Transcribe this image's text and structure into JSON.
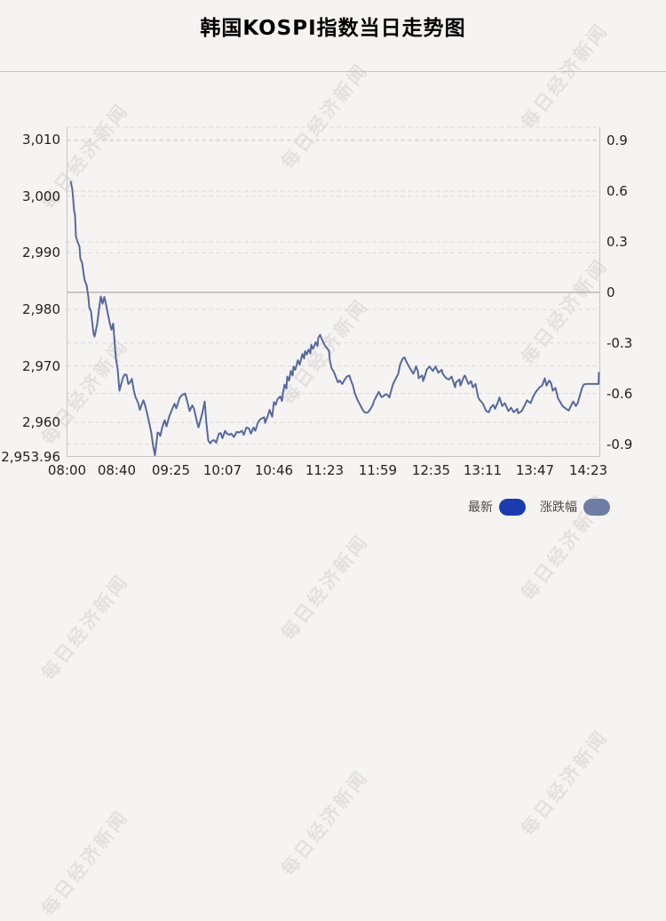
{
  "title": "韩国KOSPI指数当日走势图",
  "watermark_text": "每日经济新闻",
  "legend": {
    "latest": {
      "label": "最新",
      "color": "#1b3cae"
    },
    "change": {
      "label": "涨跌幅",
      "color": "#6e7da4"
    }
  },
  "colors": {
    "background": "#f6f4f3",
    "line": "#56699e",
    "grid": "#d9d6d5",
    "zero_line": "#9b9897",
    "axis": "#c7c4c3",
    "label_text": "#222222",
    "legend_text": "#4a4a4a",
    "title_text": "#000000",
    "divider": "#c9c6c5",
    "watermark": "rgba(155,145,140,0.20)"
  },
  "chart_data": {
    "type": "line",
    "title": "韩国KOSPI指数当日走势图",
    "grid": true,
    "legend_position": "bottom-right",
    "x_axis": {
      "ticks": [
        {
          "label": "08:00",
          "f": 0
        },
        {
          "label": "08:40",
          "f": 0.0933
        },
        {
          "label": "09:25",
          "f": 0.195
        },
        {
          "label": "10:07",
          "f": 0.2917
        },
        {
          "label": "10:46",
          "f": 0.3883
        },
        {
          "label": "11:23",
          "f": 0.4833
        },
        {
          "label": "11:59",
          "f": 0.5833
        },
        {
          "label": "12:35",
          "f": 0.6833
        },
        {
          "label": "13:11",
          "f": 0.78
        },
        {
          "label": "13:47",
          "f": 0.8783
        },
        {
          "label": "14:23",
          "f": 0.9783
        }
      ]
    },
    "y_left": {
      "min": 2953.96,
      "max": 3012.25,
      "labels": [
        {
          "text": "3,010",
          "value": 3010
        },
        {
          "text": "3,000",
          "value": 3000
        },
        {
          "text": "2,990",
          "value": 2990
        },
        {
          "text": "2,980",
          "value": 2980
        },
        {
          "text": "2,970",
          "value": 2970
        },
        {
          "text": "2,960",
          "value": 2960
        }
      ],
      "min_label": {
        "text": "2,953.96",
        "value": 2953.96
      }
    },
    "y_right": {
      "unit": "%",
      "labels": [
        {
          "text": "0.9",
          "pct": 0.9
        },
        {
          "text": "0.6",
          "pct": 0.6
        },
        {
          "text": "0.3",
          "pct": 0.3
        },
        {
          "text": "0",
          "pct": 0
        },
        {
          "text": "-0.3",
          "pct": -0.3
        },
        {
          "text": "-0.6",
          "pct": -0.6
        },
        {
          "text": "-0.9",
          "pct": -0.9
        }
      ]
    },
    "zero_line_value": 2983.0,
    "day_low": 2953.96,
    "latest_value": 2968.9,
    "series": [
      {
        "name": "最新",
        "points": [
          [
            0.0067,
            3002.7
          ],
          [
            0.0083,
            3002.0
          ],
          [
            0.01,
            3001.2
          ],
          [
            0.0117,
            2999.3
          ],
          [
            0.0133,
            2997.4
          ],
          [
            0.015,
            2996.7
          ],
          [
            0.0167,
            2992.9
          ],
          [
            0.02,
            2991.9
          ],
          [
            0.0233,
            2991.1
          ],
          [
            0.025,
            2989.0
          ],
          [
            0.0283,
            2988.2
          ],
          [
            0.0317,
            2985.9
          ],
          [
            0.0333,
            2985.1
          ],
          [
            0.0367,
            2984.3
          ],
          [
            0.04,
            2982.2
          ],
          [
            0.0417,
            2980.4
          ],
          [
            0.045,
            2979.6
          ],
          [
            0.0483,
            2976.8
          ],
          [
            0.05,
            2975.6
          ],
          [
            0.0517,
            2975.2
          ],
          [
            0.0533,
            2975.9
          ],
          [
            0.0567,
            2977.5
          ],
          [
            0.06,
            2980.0
          ],
          [
            0.0633,
            2982.3
          ],
          [
            0.0667,
            2981.0
          ],
          [
            0.07,
            2982.2
          ],
          [
            0.0733,
            2980.8
          ],
          [
            0.0767,
            2979.2
          ],
          [
            0.08,
            2977.6
          ],
          [
            0.0833,
            2976.4
          ],
          [
            0.0867,
            2977.5
          ],
          [
            0.09,
            2973.3
          ],
          [
            0.0917,
            2971.3
          ],
          [
            0.095,
            2969.4
          ],
          [
            0.0983,
            2965.6
          ],
          [
            0.1017,
            2966.8
          ],
          [
            0.105,
            2967.9
          ],
          [
            0.1083,
            2968.5
          ],
          [
            0.1117,
            2968.4
          ],
          [
            0.115,
            2966.8
          ],
          [
            0.1183,
            2967.1
          ],
          [
            0.1217,
            2967.7
          ],
          [
            0.125,
            2965.8
          ],
          [
            0.1283,
            2964.5
          ],
          [
            0.1333,
            2963.5
          ],
          [
            0.1367,
            2962.2
          ],
          [
            0.14,
            2963.1
          ],
          [
            0.1433,
            2963.9
          ],
          [
            0.1467,
            2963.0
          ],
          [
            0.15,
            2961.7
          ],
          [
            0.155,
            2959.6
          ],
          [
            0.1583,
            2958.0
          ],
          [
            0.1617,
            2955.8
          ],
          [
            0.165,
            2954.2
          ],
          [
            0.1667,
            2955.5
          ],
          [
            0.17,
            2958.2
          ],
          [
            0.1733,
            2958.0
          ],
          [
            0.175,
            2957.6
          ],
          [
            0.1783,
            2959.0
          ],
          [
            0.1833,
            2960.4
          ],
          [
            0.1867,
            2959.3
          ],
          [
            0.1917,
            2961.0
          ],
          [
            0.1967,
            2962.2
          ],
          [
            0.2017,
            2963.3
          ],
          [
            0.205,
            2962.5
          ],
          [
            0.2117,
            2964.4
          ],
          [
            0.2167,
            2964.9
          ],
          [
            0.2217,
            2965.1
          ],
          [
            0.2267,
            2963.3
          ],
          [
            0.23,
            2962.0
          ],
          [
            0.235,
            2963.0
          ],
          [
            0.2383,
            2962.4
          ],
          [
            0.2433,
            2960.3
          ],
          [
            0.2467,
            2959.1
          ],
          [
            0.2533,
            2961.4
          ],
          [
            0.2583,
            2963.7
          ],
          [
            0.2617,
            2959.8
          ],
          [
            0.265,
            2956.8
          ],
          [
            0.2683,
            2956.3
          ],
          [
            0.2733,
            2956.8
          ],
          [
            0.2767,
            2956.8
          ],
          [
            0.28,
            2956.4
          ],
          [
            0.285,
            2958.0
          ],
          [
            0.2883,
            2958.1
          ],
          [
            0.2917,
            2957.2
          ],
          [
            0.2967,
            2958.5
          ],
          [
            0.3,
            2958.0
          ],
          [
            0.305,
            2957.8
          ],
          [
            0.3083,
            2958.0
          ],
          [
            0.3133,
            2957.4
          ],
          [
            0.3183,
            2958.3
          ],
          [
            0.3233,
            2958.2
          ],
          [
            0.3283,
            2958.5
          ],
          [
            0.3317,
            2957.8
          ],
          [
            0.3367,
            2959.1
          ],
          [
            0.3417,
            2958.9
          ],
          [
            0.345,
            2958.0
          ],
          [
            0.35,
            2959.1
          ],
          [
            0.3533,
            2958.5
          ],
          [
            0.3583,
            2960.0
          ],
          [
            0.3633,
            2960.6
          ],
          [
            0.37,
            2960.9
          ],
          [
            0.3717,
            2959.9
          ],
          [
            0.3767,
            2961.1
          ],
          [
            0.38,
            2962.2
          ],
          [
            0.385,
            2961.0
          ],
          [
            0.3883,
            2963.6
          ],
          [
            0.3917,
            2963.1
          ],
          [
            0.395,
            2964.1
          ],
          [
            0.4,
            2964.6
          ],
          [
            0.4033,
            2963.8
          ],
          [
            0.405,
            2965.1
          ],
          [
            0.4083,
            2966.7
          ],
          [
            0.4117,
            2966.0
          ],
          [
            0.4133,
            2968.1
          ],
          [
            0.4167,
            2967.4
          ],
          [
            0.42,
            2969.1
          ],
          [
            0.4233,
            2968.3
          ],
          [
            0.425,
            2969.9
          ],
          [
            0.4283,
            2969.3
          ],
          [
            0.4333,
            2971.0
          ],
          [
            0.4367,
            2970.2
          ],
          [
            0.4417,
            2972.1
          ],
          [
            0.445,
            2971.3
          ],
          [
            0.4467,
            2972.6
          ],
          [
            0.45,
            2972.0
          ],
          [
            0.4533,
            2972.9
          ],
          [
            0.4567,
            2972.2
          ],
          [
            0.4583,
            2973.7
          ],
          [
            0.4617,
            2973.0
          ],
          [
            0.4667,
            2974.2
          ],
          [
            0.47,
            2973.5
          ],
          [
            0.4717,
            2975.0
          ],
          [
            0.475,
            2975.5
          ],
          [
            0.4783,
            2974.7
          ],
          [
            0.4833,
            2973.7
          ],
          [
            0.4867,
            2973.3
          ],
          [
            0.4917,
            2972.6
          ],
          [
            0.4933,
            2970.9
          ],
          [
            0.4967,
            2969.5
          ],
          [
            0.5,
            2969.1
          ],
          [
            0.5033,
            2968.3
          ],
          [
            0.5083,
            2967.1
          ],
          [
            0.5117,
            2967.4
          ],
          [
            0.5167,
            2966.8
          ],
          [
            0.52,
            2967.4
          ],
          [
            0.525,
            2968.1
          ],
          [
            0.53,
            2968.3
          ],
          [
            0.5333,
            2967.3
          ],
          [
            0.5367,
            2966.5
          ],
          [
            0.54,
            2965.2
          ],
          [
            0.545,
            2964.0
          ],
          [
            0.55,
            2963.1
          ],
          [
            0.555,
            2962.2
          ],
          [
            0.5583,
            2961.8
          ],
          [
            0.5617,
            2961.7
          ],
          [
            0.565,
            2961.8
          ],
          [
            0.5683,
            2962.2
          ],
          [
            0.5733,
            2963.0
          ],
          [
            0.5767,
            2963.9
          ],
          [
            0.5817,
            2964.8
          ],
          [
            0.585,
            2965.4
          ],
          [
            0.59,
            2964.5
          ],
          [
            0.5933,
            2964.6
          ],
          [
            0.5983,
            2965.0
          ],
          [
            0.6017,
            2964.8
          ],
          [
            0.605,
            2964.4
          ],
          [
            0.61,
            2966.2
          ],
          [
            0.6133,
            2967.1
          ],
          [
            0.6183,
            2968.0
          ],
          [
            0.6217,
            2968.6
          ],
          [
            0.625,
            2970.2
          ],
          [
            0.63,
            2971.3
          ],
          [
            0.6333,
            2971.5
          ],
          [
            0.6367,
            2970.8
          ],
          [
            0.6417,
            2969.9
          ],
          [
            0.6467,
            2969.1
          ],
          [
            0.65,
            2968.6
          ],
          [
            0.6533,
            2969.4
          ],
          [
            0.655,
            2969.9
          ],
          [
            0.6583,
            2969.1
          ],
          [
            0.66,
            2967.8
          ],
          [
            0.6633,
            2968.1
          ],
          [
            0.6667,
            2968.3
          ],
          [
            0.6683,
            2967.3
          ],
          [
            0.6717,
            2968.2
          ],
          [
            0.675,
            2969.3
          ],
          [
            0.68,
            2969.9
          ],
          [
            0.6867,
            2969.1
          ],
          [
            0.6917,
            2969.9
          ],
          [
            0.6967,
            2968.8
          ],
          [
            0.7033,
            2969.3
          ],
          [
            0.705,
            2968.6
          ],
          [
            0.7117,
            2967.8
          ],
          [
            0.7167,
            2967.6
          ],
          [
            0.7217,
            2968.1
          ],
          [
            0.7283,
            2966.2
          ],
          [
            0.73,
            2967.1
          ],
          [
            0.7367,
            2967.6
          ],
          [
            0.7383,
            2966.5
          ],
          [
            0.745,
            2968.1
          ],
          [
            0.7467,
            2968.3
          ],
          [
            0.7533,
            2966.8
          ],
          [
            0.7583,
            2967.3
          ],
          [
            0.7617,
            2966.2
          ],
          [
            0.7667,
            2966.8
          ],
          [
            0.7717,
            2964.4
          ],
          [
            0.775,
            2963.9
          ],
          [
            0.78,
            2963.4
          ],
          [
            0.7867,
            2962.0
          ],
          [
            0.7917,
            2961.8
          ],
          [
            0.795,
            2962.6
          ],
          [
            0.8,
            2963.1
          ],
          [
            0.8033,
            2962.4
          ],
          [
            0.8083,
            2963.5
          ],
          [
            0.8117,
            2964.4
          ],
          [
            0.8167,
            2962.9
          ],
          [
            0.8217,
            2963.4
          ],
          [
            0.8283,
            2962.0
          ],
          [
            0.8333,
            2962.6
          ],
          [
            0.8383,
            2961.8
          ],
          [
            0.845,
            2962.4
          ],
          [
            0.8467,
            2961.6
          ],
          [
            0.8533,
            2962.0
          ],
          [
            0.8583,
            2962.9
          ],
          [
            0.8633,
            2963.9
          ],
          [
            0.87,
            2963.4
          ],
          [
            0.875,
            2964.6
          ],
          [
            0.88,
            2965.4
          ],
          [
            0.8867,
            2966.2
          ],
          [
            0.8917,
            2966.5
          ],
          [
            0.8967,
            2967.8
          ],
          [
            0.9,
            2966.5
          ],
          [
            0.905,
            2967.4
          ],
          [
            0.9083,
            2967.0
          ],
          [
            0.9117,
            2965.6
          ],
          [
            0.9167,
            2966.1
          ],
          [
            0.9217,
            2964.2
          ],
          [
            0.925,
            2963.7
          ],
          [
            0.93,
            2962.9
          ],
          [
            0.9367,
            2962.4
          ],
          [
            0.9417,
            2962.1
          ],
          [
            0.9467,
            2963.1
          ],
          [
            0.95,
            2963.7
          ],
          [
            0.955,
            2962.9
          ],
          [
            0.9583,
            2963.4
          ],
          [
            0.9633,
            2965.0
          ],
          [
            0.9667,
            2966.1
          ],
          [
            0.97,
            2966.7
          ],
          [
            0.975,
            2966.8
          ],
          [
            0.9817,
            2966.8
          ],
          [
            0.9883,
            2966.8
          ],
          [
            0.995,
            2966.8
          ],
          [
            0.9975,
            2966.8
          ],
          [
            0.9983,
            2968.9
          ]
        ]
      }
    ]
  }
}
